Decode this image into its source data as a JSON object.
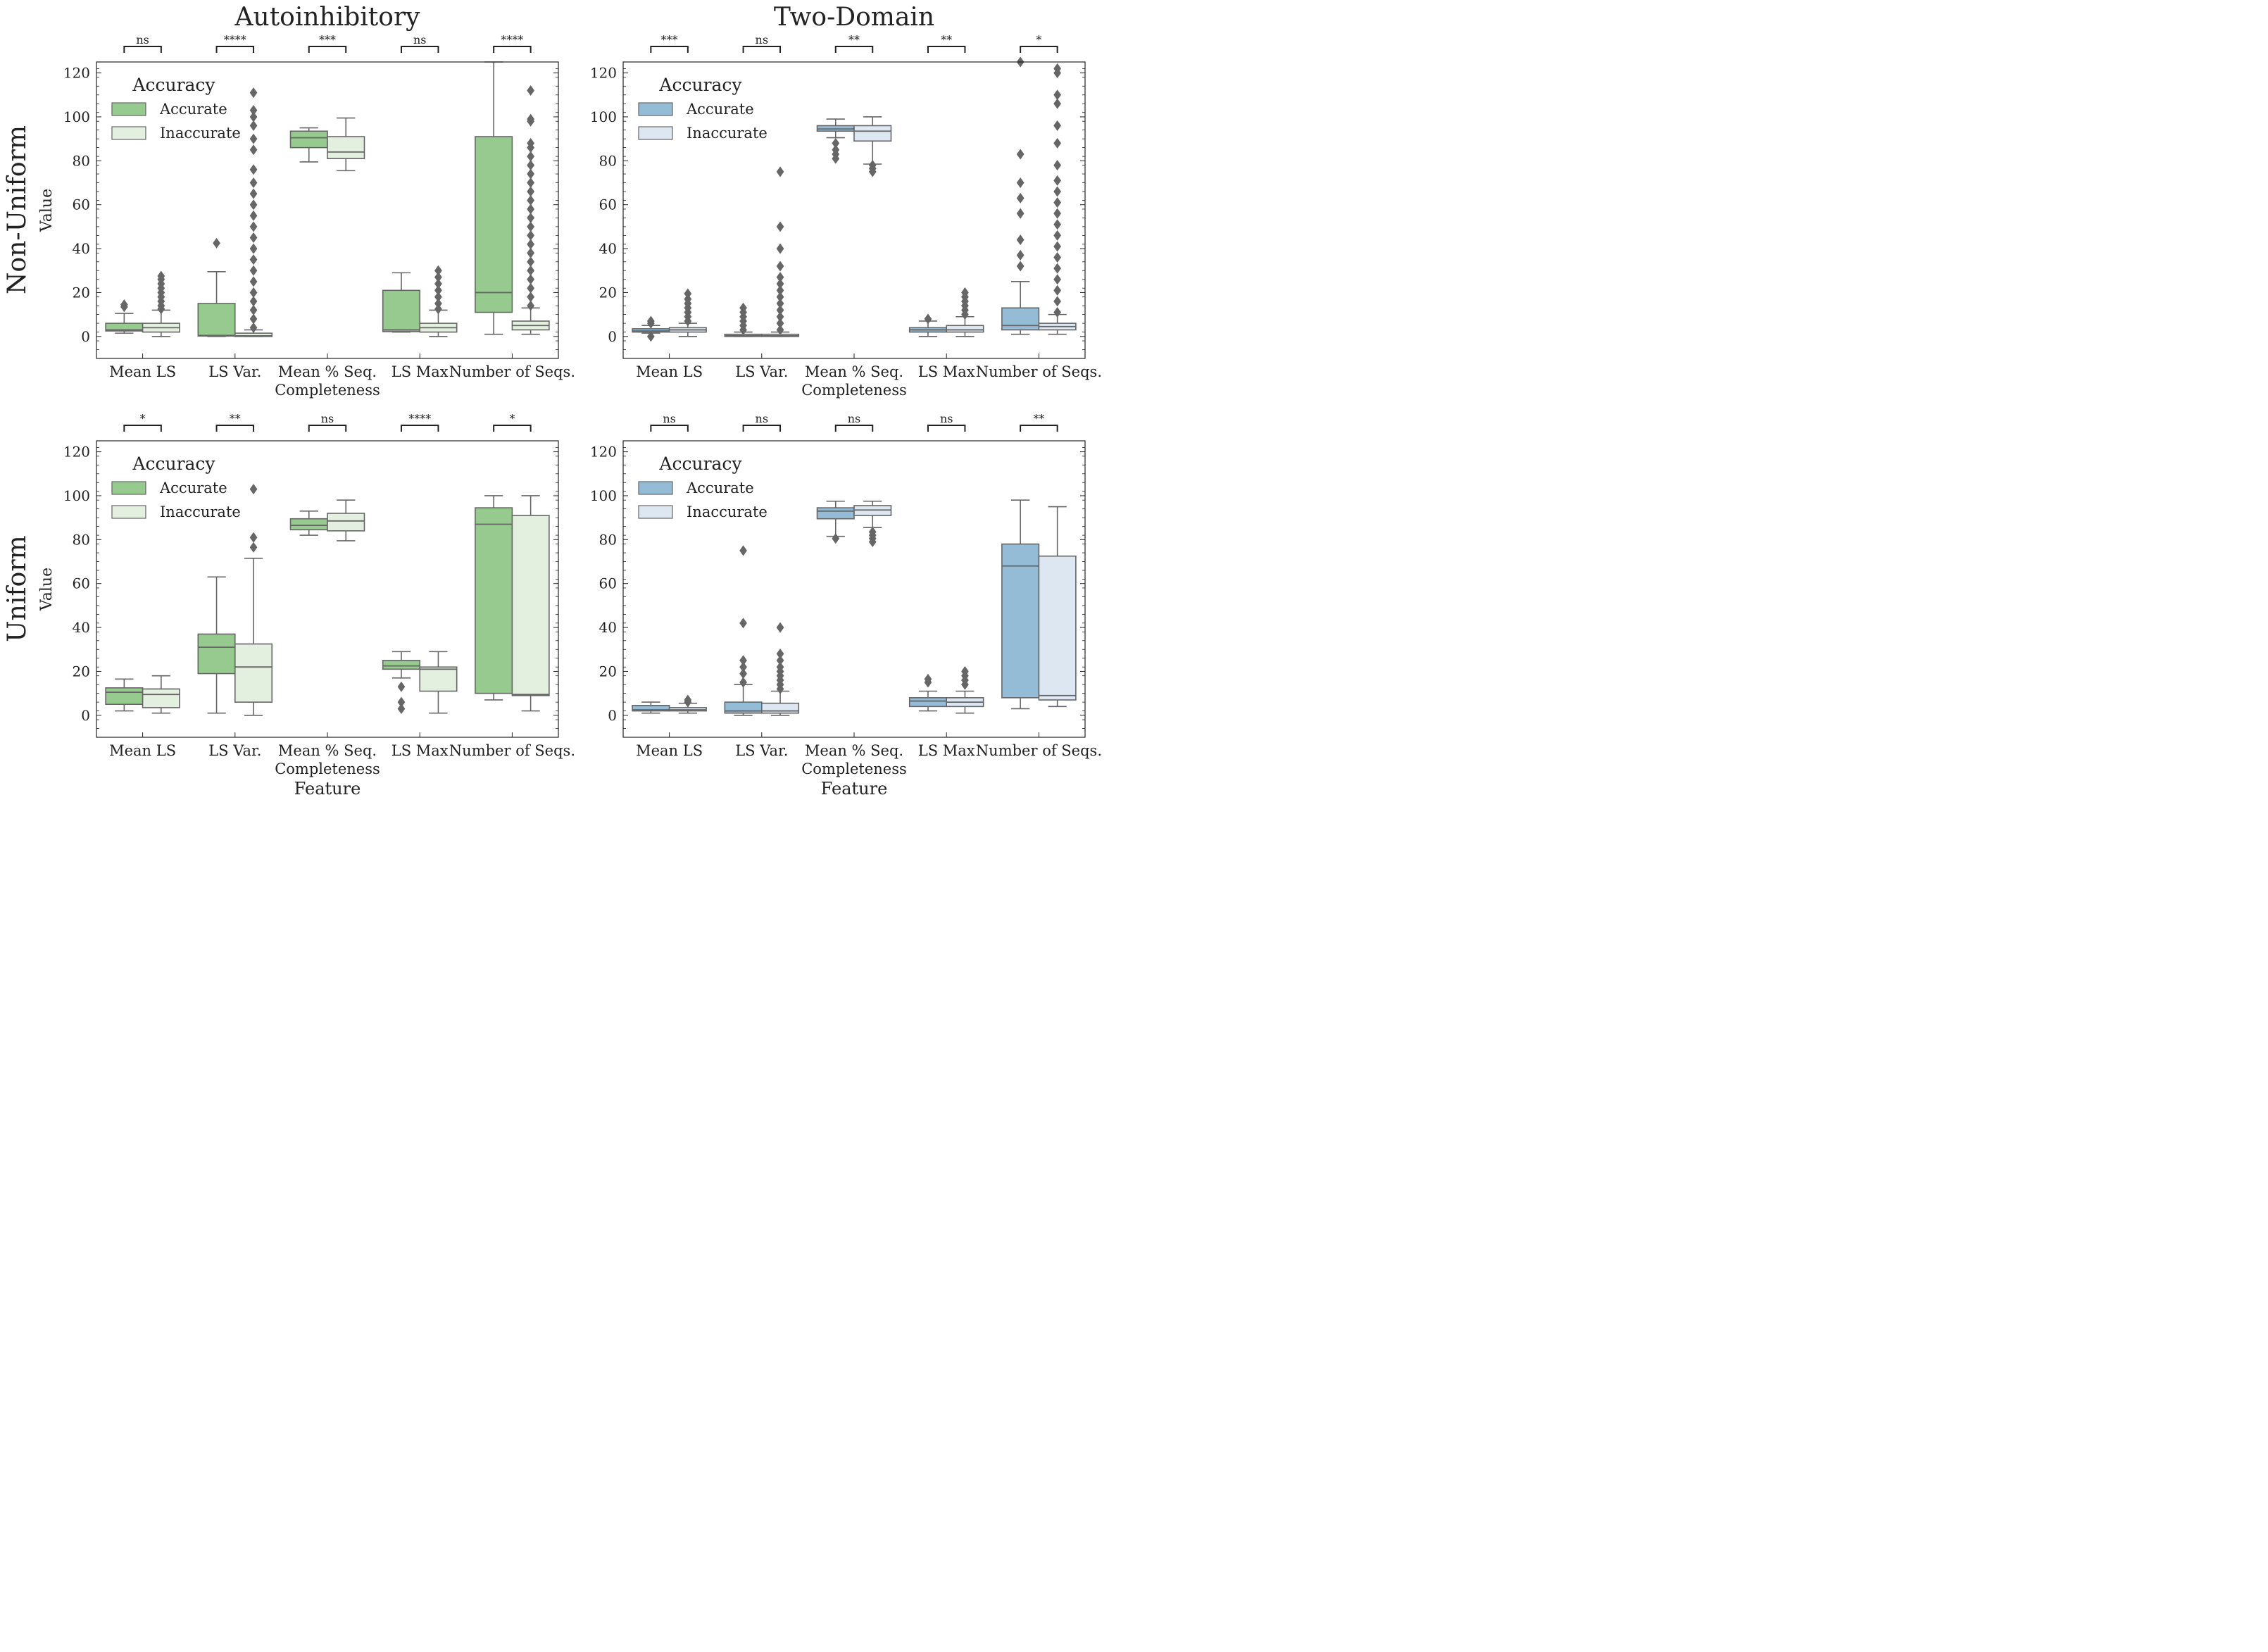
{
  "figure": {
    "col_titles": [
      "Autoinhibitory",
      "Two-Domain"
    ],
    "row_labels": [
      "Non-Uniform",
      "Uniform"
    ],
    "ylabel": "Value",
    "xlabel": "Feature"
  },
  "colors": {
    "autoinhibitory": {
      "Accurate": "#96ca8f",
      "Inaccurate": "#e3efdf"
    },
    "two_domain": {
      "Accurate": "#94bcd7",
      "Inaccurate": "#dde7f2"
    },
    "box_edge": "#666666",
    "axis": "#222222"
  },
  "chart_data": [
    {
      "type": "box",
      "title": "Autoinhibitory",
      "row": "Non-Uniform",
      "palette": "autoinhibitory",
      "xlabel": "",
      "ylabel": "Value",
      "ylim": [
        -10,
        125
      ],
      "yticks": [
        0,
        20,
        40,
        60,
        80,
        100,
        120
      ],
      "categories": [
        "Mean LS",
        "LS Var.",
        "Mean % Seq.\nCompleteness",
        "LS Max",
        "Number of Seqs."
      ],
      "legend": {
        "title": "Accuracy",
        "entries": [
          "Accurate",
          "Inaccurate"
        ],
        "position": "upper-left"
      },
      "significance": [
        "ns",
        "****",
        "***",
        "ns",
        "****"
      ],
      "series": [
        {
          "name": "Accurate",
          "boxes": [
            {
              "whislo": 1.5,
              "q1": 2.5,
              "med": 3.0,
              "q3": 6.0,
              "whishi": 10.5,
              "fliers": [
                13.5,
                14.5
              ]
            },
            {
              "whislo": 0.0,
              "q1": 0.2,
              "med": 0.5,
              "q3": 15.0,
              "whishi": 29.5,
              "fliers": [
                42.5
              ]
            },
            {
              "whislo": 79.5,
              "q1": 86.0,
              "med": 90.5,
              "q3": 93.5,
              "whishi": 95.0,
              "fliers": []
            },
            {
              "whislo": 2.0,
              "q1": 2.2,
              "med": 3.0,
              "q3": 21.0,
              "whishi": 29.0,
              "fliers": []
            },
            {
              "whislo": 1.0,
              "q1": 11.0,
              "med": 20.0,
              "q3": 91.0,
              "whishi": 125.0,
              "fliers": []
            }
          ]
        },
        {
          "name": "Inaccurate",
          "boxes": [
            {
              "whislo": 0.0,
              "q1": 2.0,
              "med": 4.0,
              "q3": 6.0,
              "whishi": 12.0,
              "fliers": [
                12.5,
                14,
                16,
                18,
                20,
                22,
                24,
                26,
                27.5
              ]
            },
            {
              "whislo": 0.0,
              "q1": 0.0,
              "med": 0.3,
              "q3": 1.5,
              "whishi": 3.0,
              "fliers": [
                4,
                8,
                12,
                16,
                20,
                25,
                30,
                35,
                40,
                45,
                50,
                55,
                60,
                65,
                70,
                76,
                85,
                90,
                96,
                100,
                103,
                111
              ]
            },
            {
              "whislo": 75.5,
              "q1": 81.0,
              "med": 84.0,
              "q3": 91.0,
              "whishi": 99.5,
              "fliers": []
            },
            {
              "whislo": 0.0,
              "q1": 2.0,
              "med": 4.0,
              "q3": 6.0,
              "whishi": 12.0,
              "fliers": [
                12.5,
                15,
                18,
                21,
                24,
                27,
                30
              ]
            },
            {
              "whislo": 1.0,
              "q1": 3.0,
              "med": 5.0,
              "q3": 7.0,
              "whishi": 13.0,
              "fliers": [
                14,
                18,
                22,
                26,
                30,
                34,
                38,
                42,
                46,
                50,
                54,
                58,
                62,
                66,
                70,
                74,
                78,
                82,
                86,
                88,
                98,
                99,
                112
              ]
            }
          ]
        }
      ]
    },
    {
      "type": "box",
      "title": "Two-Domain",
      "row": "Non-Uniform",
      "palette": "two_domain",
      "xlabel": "",
      "ylabel": "",
      "ylim": [
        -10,
        125
      ],
      "yticks": [
        0,
        20,
        40,
        60,
        80,
        100,
        120
      ],
      "categories": [
        "Mean LS",
        "LS Var.",
        "Mean % Seq.\nCompleteness",
        "LS Max",
        "Number of Seqs."
      ],
      "legend": {
        "title": "Accuracy",
        "entries": [
          "Accurate",
          "Inaccurate"
        ],
        "position": "upper-left"
      },
      "significance": [
        "***",
        "ns",
        "**",
        "**",
        "*"
      ],
      "series": [
        {
          "name": "Accurate",
          "boxes": [
            {
              "whislo": 1.5,
              "q1": 2.0,
              "med": 2.5,
              "q3": 3.5,
              "whishi": 5.0,
              "fliers": [
                0,
                6,
                7
              ]
            },
            {
              "whislo": 0.0,
              "q1": 0.0,
              "med": 0.3,
              "q3": 1.0,
              "whishi": 2.0,
              "fliers": [
                3,
                5,
                7,
                9,
                11,
                13
              ]
            },
            {
              "whislo": 90.5,
              "q1": 93.5,
              "med": 94.5,
              "q3": 96.0,
              "whishi": 99.0,
              "fliers": [
                81,
                83,
                85,
                88
              ]
            },
            {
              "whislo": 0.0,
              "q1": 2.0,
              "med": 3.0,
              "q3": 4.0,
              "whishi": 7.0,
              "fliers": [
                8
              ]
            },
            {
              "whislo": 1.0,
              "q1": 3.0,
              "med": 5.0,
              "q3": 13.0,
              "whishi": 25.0,
              "fliers": [
                32,
                37,
                44,
                56,
                63,
                70,
                83,
                125
              ]
            }
          ]
        },
        {
          "name": "Inaccurate",
          "boxes": [
            {
              "whislo": 0.0,
              "q1": 2.0,
              "med": 3.0,
              "q3": 4.0,
              "whishi": 6.0,
              "fliers": [
                7,
                9,
                11,
                13,
                15,
                17,
                19.5
              ]
            },
            {
              "whislo": 0.0,
              "q1": 0.0,
              "med": 0.3,
              "q3": 1.0,
              "whishi": 2.0,
              "fliers": [
                3,
                6,
                9,
                12,
                15,
                18,
                21,
                24,
                27,
                32,
                40,
                50,
                75
              ]
            },
            {
              "whislo": 78.5,
              "q1": 89.0,
              "med": 93.5,
              "q3": 96.0,
              "whishi": 100.0,
              "fliers": [
                75,
                76.5,
                78
              ]
            },
            {
              "whislo": 0.0,
              "q1": 2.0,
              "med": 3.0,
              "q3": 5.0,
              "whishi": 9.0,
              "fliers": [
                10,
                12,
                14,
                16,
                18,
                20
              ]
            },
            {
              "whislo": 1.0,
              "q1": 3.0,
              "med": 4.5,
              "q3": 6.0,
              "whishi": 10.0,
              "fliers": [
                11,
                16,
                21,
                26,
                31,
                36,
                41,
                46,
                51,
                56,
                61,
                66,
                71,
                78,
                88,
                96,
                106,
                110,
                120,
                122
              ]
            }
          ]
        }
      ]
    },
    {
      "type": "box",
      "title": "",
      "row": "Uniform",
      "palette": "autoinhibitory",
      "xlabel": "Feature",
      "ylabel": "Value",
      "ylim": [
        -10,
        125
      ],
      "yticks": [
        0,
        20,
        40,
        60,
        80,
        100,
        120
      ],
      "categories": [
        "Mean LS",
        "LS Var.",
        "Mean % Seq.\nCompleteness",
        "LS Max",
        "Number of Seqs."
      ],
      "legend": {
        "title": "Accuracy",
        "entries": [
          "Accurate",
          "Inaccurate"
        ],
        "position": "upper-left"
      },
      "significance": [
        "*",
        "**",
        "ns",
        "****",
        "*"
      ],
      "series": [
        {
          "name": "Accurate",
          "boxes": [
            {
              "whislo": 2.0,
              "q1": 5.0,
              "med": 10.5,
              "q3": 12.5,
              "whishi": 16.5,
              "fliers": []
            },
            {
              "whislo": 1.0,
              "q1": 19.0,
              "med": 31.0,
              "q3": 37.0,
              "whishi": 63.0,
              "fliers": []
            },
            {
              "whislo": 82.0,
              "q1": 84.5,
              "med": 86.5,
              "q3": 89.5,
              "whishi": 93.0,
              "fliers": []
            },
            {
              "whislo": 17.0,
              "q1": 21.0,
              "med": 22.5,
              "q3": 25.0,
              "whishi": 29.0,
              "fliers": [
                3,
                6,
                13
              ]
            },
            {
              "whislo": 7.0,
              "q1": 10.0,
              "med": 87.0,
              "q3": 94.5,
              "whishi": 100.0,
              "fliers": []
            }
          ]
        },
        {
          "name": "Inaccurate",
          "boxes": [
            {
              "whislo": 1.0,
              "q1": 3.5,
              "med": 9.5,
              "q3": 12.0,
              "whishi": 18.0,
              "fliers": []
            },
            {
              "whislo": 0.0,
              "q1": 6.0,
              "med": 22.0,
              "q3": 32.5,
              "whishi": 71.5,
              "fliers": [
                76.5,
                81,
                103
              ]
            },
            {
              "whislo": 79.5,
              "q1": 84.0,
              "med": 88.5,
              "q3": 92.0,
              "whishi": 98.0,
              "fliers": []
            },
            {
              "whislo": 1.0,
              "q1": 11.0,
              "med": 21.0,
              "q3": 22.0,
              "whishi": 29.0,
              "fliers": []
            },
            {
              "whislo": 2.0,
              "q1": 9.0,
              "med": 9.5,
              "q3": 91.0,
              "whishi": 100.0,
              "fliers": []
            }
          ]
        }
      ]
    },
    {
      "type": "box",
      "title": "",
      "row": "Uniform",
      "palette": "two_domain",
      "xlabel": "Feature",
      "ylabel": "",
      "ylim": [
        -10,
        125
      ],
      "yticks": [
        0,
        20,
        40,
        60,
        80,
        100,
        120
      ],
      "categories": [
        "Mean LS",
        "LS Var.",
        "Mean % Seq.\nCompleteness",
        "LS Max",
        "Number of Seqs."
      ],
      "legend": {
        "title": "Accuracy",
        "entries": [
          "Accurate",
          "Inaccurate"
        ],
        "position": "upper-left"
      },
      "significance": [
        "ns",
        "ns",
        "ns",
        "ns",
        "**"
      ],
      "series": [
        {
          "name": "Accurate",
          "boxes": [
            {
              "whislo": 1.0,
              "q1": 2.0,
              "med": 2.5,
              "q3": 4.5,
              "whishi": 6.0,
              "fliers": []
            },
            {
              "whislo": 0.0,
              "q1": 1.0,
              "med": 2.0,
              "q3": 6.0,
              "whishi": 14.0,
              "fliers": [
                15,
                19,
                22,
                25,
                42,
                75
              ]
            },
            {
              "whislo": 81.5,
              "q1": 89.5,
              "med": 93.0,
              "q3": 94.5,
              "whishi": 97.5,
              "fliers": [
                80.5
              ]
            },
            {
              "whislo": 2.0,
              "q1": 4.0,
              "med": 6.5,
              "q3": 8.0,
              "whishi": 11.0,
              "fliers": [
                15,
                16.5
              ]
            },
            {
              "whislo": 3.0,
              "q1": 8.0,
              "med": 68.0,
              "q3": 78.0,
              "whishi": 98.0,
              "fliers": []
            }
          ]
        },
        {
          "name": "Inaccurate",
          "boxes": [
            {
              "whislo": 1.0,
              "q1": 2.0,
              "med": 2.5,
              "q3": 3.5,
              "whishi": 5.5,
              "fliers": [
                6,
                7
              ]
            },
            {
              "whislo": 0.0,
              "q1": 1.0,
              "med": 2.0,
              "q3": 5.5,
              "whishi": 11.0,
              "fliers": [
                12,
                14,
                16,
                18,
                20,
                22,
                25,
                28,
                40
              ]
            },
            {
              "whislo": 85.5,
              "q1": 91.0,
              "med": 93.5,
              "q3": 95.5,
              "whishi": 97.5,
              "fliers": [
                79,
                80.5,
                82,
                83.5
              ]
            },
            {
              "whislo": 1.0,
              "q1": 4.0,
              "med": 6.0,
              "q3": 8.0,
              "whishi": 11.0,
              "fliers": [
                14,
                16,
                18,
                20
              ]
            },
            {
              "whislo": 4.0,
              "q1": 7.0,
              "med": 9.0,
              "q3": 72.5,
              "whishi": 95.0,
              "fliers": []
            }
          ]
        }
      ]
    }
  ]
}
